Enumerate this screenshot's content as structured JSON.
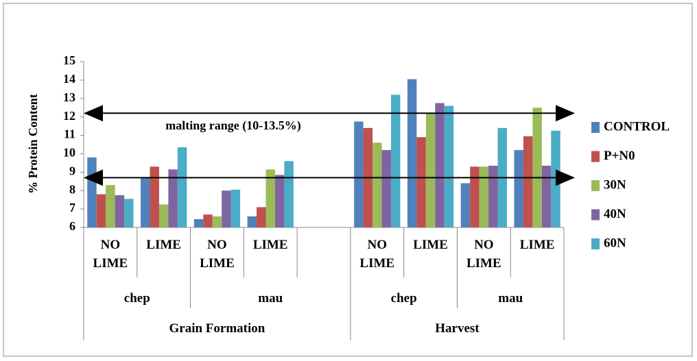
{
  "chart_data": {
    "type": "bar",
    "y_axis_label": "% Protein Content",
    "annotation": "malting range (10-13.5%)",
    "reference_lines": [
      12.2,
      8.7
    ],
    "ylim": [
      6,
      15
    ],
    "yticks": [
      6,
      7,
      8,
      9,
      10,
      11,
      12,
      13,
      14,
      15
    ],
    "category_groups": [
      {
        "label": "Grain Formation",
        "groups": [
          {
            "label": "chep",
            "categories": [
              "NO LIME",
              "LIME"
            ]
          },
          {
            "label": "mau",
            "categories": [
              "NO LIME",
              "LIME",
              null
            ]
          }
        ]
      },
      {
        "label": "Harvest",
        "groups": [
          {
            "label": "chep",
            "categories": [
              "NO LIME",
              "LIME"
            ]
          },
          {
            "label": "mau",
            "categories": [
              "NO LIME",
              "LIME"
            ]
          }
        ]
      }
    ],
    "series": [
      {
        "name": "CONTROL",
        "color": "#4F81BD",
        "values": [
          9.8,
          8.7,
          6.45,
          6.6,
          null,
          11.75,
          14.05,
          8.4,
          10.2
        ]
      },
      {
        "name": "P+N0",
        "color": "#C0504D",
        "values": [
          7.8,
          9.3,
          6.7,
          7.1,
          null,
          11.4,
          10.9,
          9.3,
          10.95
        ]
      },
      {
        "name": "30N",
        "color": "#9BBB59",
        "values": [
          8.3,
          7.25,
          6.6,
          9.15,
          null,
          10.6,
          12.2,
          9.3,
          12.5
        ]
      },
      {
        "name": "40N",
        "color": "#8064A2",
        "values": [
          7.75,
          9.15,
          8.0,
          8.85,
          null,
          10.2,
          12.75,
          9.35,
          9.35
        ]
      },
      {
        "name": "60N",
        "color": "#4BACC6",
        "values": [
          7.55,
          10.35,
          8.05,
          9.6,
          null,
          13.2,
          12.6,
          11.4,
          11.25
        ]
      }
    ]
  }
}
